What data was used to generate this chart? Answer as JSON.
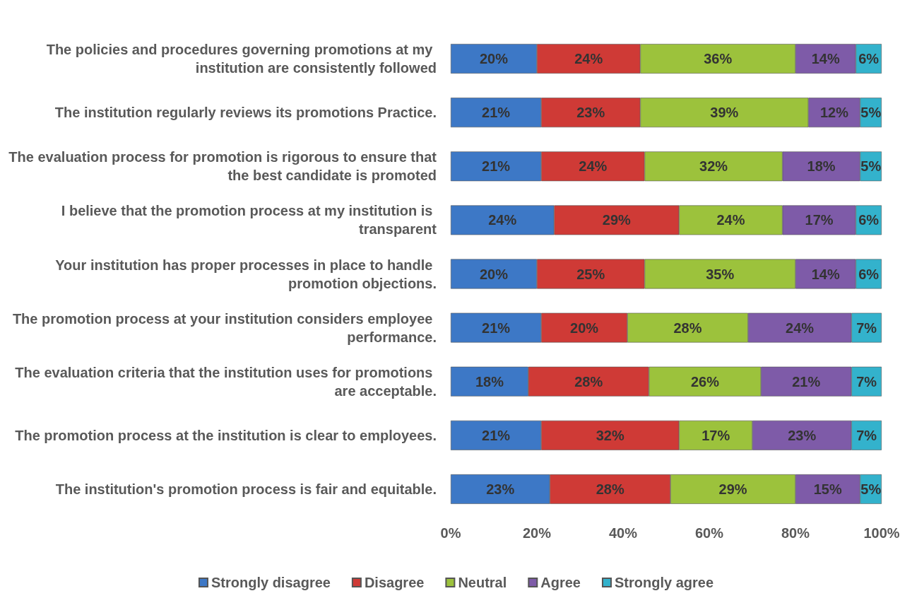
{
  "chart_data": {
    "type": "bar",
    "orientation": "horizontal",
    "stacked": true,
    "categories": [
      "The policies and procedures governing promotions at my institution are consistently followed",
      "The institution regularly reviews its promotions Practice.",
      "The evaluation process for promotion is rigorous to ensure that the best candidate is promoted",
      "I believe that the promotion process at my institution is transparent",
      "Your institution has proper processes in place to handle promotion objections.",
      "The promotion process at your institution considers employee performance.",
      "The evaluation criteria that the institution uses for promotions are acceptable.",
      "The promotion process at the institution is clear to employees.",
      "The institution's promotion process is fair and equitable."
    ],
    "series": [
      {
        "name": "Strongly disagree",
        "color": "#3d78c6",
        "values": [
          20,
          21,
          21,
          24,
          20,
          21,
          18,
          21,
          23
        ],
        "value_labels": [
          "20%",
          "21%",
          "21%",
          "24%",
          "20%",
          "21%",
          "18%",
          "21%",
          "23%"
        ]
      },
      {
        "name": "Disagree",
        "color": "#cf3a36",
        "values": [
          24,
          23,
          24,
          29,
          25,
          20,
          28,
          32,
          28
        ],
        "value_labels": [
          "24%",
          "23%",
          "24%",
          "29%",
          "25%",
          "20%",
          "28%",
          "32%",
          "28%"
        ]
      },
      {
        "name": "Neutral",
        "color": "#9cc23c",
        "values": [
          36,
          39,
          32,
          24,
          35,
          28,
          26,
          17,
          29
        ],
        "value_labels": [
          "36%",
          "39%",
          "32%",
          "24%",
          "35%",
          "28%",
          "26%",
          "17%",
          "29%"
        ]
      },
      {
        "name": "Agree",
        "color": "#7e5ba8",
        "values": [
          14,
          12,
          18,
          17,
          14,
          24,
          21,
          23,
          15
        ],
        "value_labels": [
          "14%",
          "12%",
          "18%",
          "17%",
          "14%",
          "24%",
          "21%",
          "23%",
          "15%"
        ]
      },
      {
        "name": "Strongly agree",
        "color": "#33b2cc",
        "values": [
          6,
          5,
          5,
          6,
          6,
          7,
          7,
          7,
          5
        ],
        "value_labels": [
          "6%",
          "5%",
          "5%",
          "6%",
          "6%",
          "7%",
          "7%",
          "7%",
          "5%"
        ]
      }
    ],
    "xlim": [
      0,
      100
    ],
    "xticks": [
      {
        "value": 0,
        "label": "0%"
      },
      {
        "value": 20,
        "label": "20%"
      },
      {
        "value": 40,
        "label": "40%"
      },
      {
        "value": 60,
        "label": "60%"
      },
      {
        "value": 80,
        "label": "80%"
      },
      {
        "value": 100,
        "label": "100%"
      }
    ],
    "grid": false,
    "legend": "bottom"
  }
}
